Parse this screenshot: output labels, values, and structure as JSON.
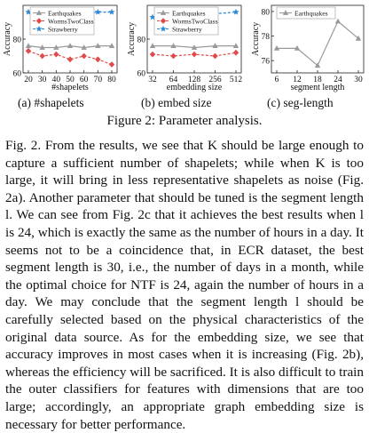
{
  "figure": {
    "caption": "Figure 2: Parameter analysis.",
    "panels": [
      {
        "label": "(a) #shapelets"
      },
      {
        "label": "(b) embed size"
      },
      {
        "label": "(c) seg-length"
      }
    ]
  },
  "chart_data": [
    {
      "type": "line",
      "xlabel": "#shapelets",
      "ylabel": "Accuracy",
      "x": [
        20,
        30,
        40,
        50,
        60,
        70,
        80
      ],
      "ylim": [
        60,
        100
      ],
      "yticks": [
        60,
        80
      ],
      "series": [
        {
          "name": "Earthquakes",
          "color": "#9a9a9a",
          "marker": "triangle",
          "dashed": false,
          "values": [
            76,
            75,
            75,
            76,
            75,
            76,
            76
          ]
        },
        {
          "name": "WormsTwoClass",
          "color": "#e24b4b",
          "marker": "diamond",
          "dashed": true,
          "values": [
            73,
            70,
            71,
            68,
            70,
            68,
            65
          ]
        },
        {
          "name": "Strawberry",
          "color": "#2a8ad9",
          "marker": "star",
          "dashed": true,
          "values": [
            96,
            95,
            96,
            96,
            95,
            96,
            96
          ]
        }
      ]
    },
    {
      "type": "line",
      "xlabel": "embedding size",
      "ylabel": "Accuracy",
      "x": [
        32,
        64,
        128,
        256,
        512
      ],
      "x_scale": "log2",
      "ylim": [
        60,
        100
      ],
      "yticks": [
        60,
        80
      ],
      "series": [
        {
          "name": "Earthquakes",
          "color": "#9a9a9a",
          "marker": "triangle",
          "dashed": false,
          "values": [
            76,
            76,
            75,
            76,
            76
          ]
        },
        {
          "name": "WormsTwoClass",
          "color": "#e24b4b",
          "marker": "diamond",
          "dashed": true,
          "values": [
            71,
            70,
            71,
            70,
            72
          ]
        },
        {
          "name": "Strawberry",
          "color": "#2a8ad9",
          "marker": "star",
          "dashed": true,
          "values": [
            93,
            94,
            95,
            95,
            96
          ]
        }
      ]
    },
    {
      "type": "line",
      "xlabel": "segment length",
      "ylabel": "Accuracy",
      "x": [
        6,
        12,
        18,
        24,
        30
      ],
      "ylim": [
        75,
        80.5
      ],
      "yticks": [
        76,
        78,
        80
      ],
      "series": [
        {
          "name": "Earthquakes",
          "color": "#9a9a9a",
          "marker": "triangle",
          "dashed": false,
          "values": [
            77,
            77,
            75.6,
            79.2,
            77.8
          ]
        }
      ]
    }
  ],
  "paragraph": "Fig. 2. From the results, we see that K should be large enough to capture a sufficient number of shapelets; while when K is too large, it will bring in less representative shapelets as noise (Fig. 2a). Another parameter that should be tuned is the segment length l. We can see from Fig. 2c that it achieves the best results when l is 24, which is exactly the same as the number of hours in a day. It seems not to be a coincidence that, in ECR dataset, the best segment length is 30, i.e., the number of days in a month, while the optimal choice for NTF is 24, again the number of hours in a day. We may conclude that the segment length l should be carefully selected based on the physical characteristics of the original data source. As for the embedding size, we see that accuracy improves in most cases when it is increasing (Fig. 2b), whereas the efficiency will be sacrificed. It is also difficult to train the outer classifiers for features with dimensions that are too large; accordingly, an appropriate graph embedding size is necessary for better performance."
}
